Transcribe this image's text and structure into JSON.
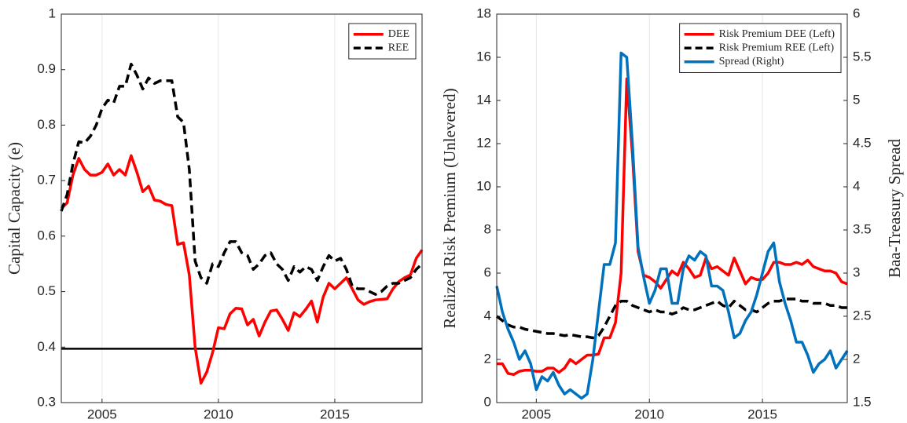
{
  "chart_data": [
    {
      "type": "line",
      "ylabel": "Capital Capacity (e)",
      "xlim": [
        2003.25,
        2018.75
      ],
      "xticks": [
        2005,
        2010,
        2015
      ],
      "ylim": [
        0.3,
        1
      ],
      "yticks": [
        0.3,
        0.4,
        0.5,
        0.6,
        0.7,
        0.8,
        0.9,
        1
      ],
      "grid": "x",
      "legend": "upper right",
      "reference_line": 0.397,
      "x": [
        2003.25,
        2003.5,
        2003.75,
        2004,
        2004.25,
        2004.5,
        2004.75,
        2005,
        2005.25,
        2005.5,
        2005.75,
        2006,
        2006.25,
        2006.5,
        2006.75,
        2007,
        2007.25,
        2007.5,
        2007.75,
        2008,
        2008.25,
        2008.5,
        2008.75,
        2009,
        2009.25,
        2009.5,
        2009.75,
        2010,
        2010.25,
        2010.5,
        2010.75,
        2011,
        2011.25,
        2011.5,
        2011.75,
        2012,
        2012.25,
        2012.5,
        2012.75,
        2013,
        2013.25,
        2013.5,
        2013.75,
        2014,
        2014.25,
        2014.5,
        2014.75,
        2015,
        2015.25,
        2015.5,
        2015.75,
        2016,
        2016.25,
        2016.5,
        2016.75,
        2017,
        2017.25,
        2017.5,
        2017.75,
        2018,
        2018.25,
        2018.5,
        2018.75
      ],
      "series": [
        {
          "name": "DEE",
          "color": "#ff0000",
          "linestyle": "solid",
          "values": [
            0.65,
            0.66,
            0.71,
            0.74,
            0.72,
            0.71,
            0.71,
            0.715,
            0.73,
            0.71,
            0.72,
            0.71,
            0.745,
            0.715,
            0.68,
            0.69,
            0.665,
            0.663,
            0.657,
            0.655,
            0.585,
            0.588,
            0.53,
            0.4,
            0.335,
            0.355,
            0.39,
            0.435,
            0.433,
            0.46,
            0.47,
            0.469,
            0.44,
            0.45,
            0.42,
            0.445,
            0.465,
            0.467,
            0.45,
            0.43,
            0.462,
            0.455,
            0.468,
            0.483,
            0.445,
            0.49,
            0.515,
            0.505,
            0.515,
            0.525,
            0.505,
            0.485,
            0.477,
            0.482,
            0.485,
            0.486,
            0.487,
            0.505,
            0.518,
            0.525,
            0.53,
            0.56,
            0.575
          ]
        },
        {
          "name": "REE",
          "color": "#000000",
          "linestyle": "dashed",
          "values": [
            0.645,
            0.675,
            0.73,
            0.77,
            0.768,
            0.78,
            0.8,
            0.83,
            0.845,
            0.84,
            0.87,
            0.87,
            0.91,
            0.89,
            0.865,
            0.885,
            0.875,
            0.88,
            0.88,
            0.88,
            0.815,
            0.805,
            0.72,
            0.555,
            0.525,
            0.515,
            0.55,
            0.545,
            0.57,
            0.59,
            0.59,
            0.57,
            0.565,
            0.54,
            0.55,
            0.565,
            0.57,
            0.55,
            0.54,
            0.52,
            0.545,
            0.535,
            0.545,
            0.54,
            0.52,
            0.545,
            0.565,
            0.555,
            0.56,
            0.54,
            0.51,
            0.505,
            0.505,
            0.5,
            0.495,
            0.5,
            0.51,
            0.515,
            0.515,
            0.52,
            0.525,
            0.54,
            0.55
          ]
        }
      ]
    },
    {
      "type": "line",
      "ylabel": "Realized Risk Premium (Unlevered)",
      "y2label": "Baa-Treasury Spread",
      "xlim": [
        2003.25,
        2018.75
      ],
      "xticks": [
        2005,
        2010,
        2015
      ],
      "ylim": [
        0,
        18
      ],
      "yticks": [
        0,
        2,
        4,
        6,
        8,
        10,
        12,
        14,
        16,
        18
      ],
      "y2lim": [
        1.5,
        6
      ],
      "y2ticks": [
        1.5,
        2,
        2.5,
        3,
        3.5,
        4,
        4.5,
        5,
        5.5,
        6
      ],
      "grid": "x",
      "legend": "upper right",
      "x": [
        2003.25,
        2003.5,
        2003.75,
        2004,
        2004.25,
        2004.5,
        2004.75,
        2005,
        2005.25,
        2005.5,
        2005.75,
        2006,
        2006.25,
        2006.5,
        2006.75,
        2007,
        2007.25,
        2007.5,
        2007.75,
        2008,
        2008.25,
        2008.5,
        2008.75,
        2009,
        2009.25,
        2009.5,
        2009.75,
        2010,
        2010.25,
        2010.5,
        2010.75,
        2011,
        2011.25,
        2011.5,
        2011.75,
        2012,
        2012.25,
        2012.5,
        2012.75,
        2013,
        2013.25,
        2013.5,
        2013.75,
        2014,
        2014.25,
        2014.5,
        2014.75,
        2015,
        2015.25,
        2015.5,
        2015.75,
        2016,
        2016.25,
        2016.5,
        2016.75,
        2017,
        2017.25,
        2017.5,
        2017.75,
        2018,
        2018.25,
        2018.5,
        2018.75
      ],
      "series": [
        {
          "name": "Risk Premium DEE (Left)",
          "color": "#ff0000",
          "linestyle": "solid",
          "values": [
            1.8,
            1.8,
            1.35,
            1.3,
            1.45,
            1.5,
            1.5,
            1.45,
            1.45,
            1.6,
            1.6,
            1.4,
            1.6,
            2.0,
            1.8,
            2.0,
            2.2,
            2.2,
            2.25,
            3.0,
            3.0,
            3.7,
            6.0,
            15.0,
            11.5,
            7.0,
            5.9,
            5.8,
            5.6,
            5.3,
            5.7,
            6.1,
            5.9,
            6.5,
            6.2,
            5.8,
            5.9,
            6.7,
            6.2,
            6.3,
            6.1,
            5.9,
            6.7,
            6.1,
            5.5,
            5.8,
            5.7,
            5.7,
            6.0,
            6.5,
            6.5,
            6.4,
            6.4,
            6.5,
            6.4,
            6.6,
            6.3,
            6.2,
            6.1,
            6.1,
            6.0,
            5.6,
            5.5
          ]
        },
        {
          "name": "Risk Premium REE (Left)",
          "color": "#000000",
          "linestyle": "dashed",
          "values": [
            4.0,
            3.8,
            3.6,
            3.5,
            3.5,
            3.4,
            3.35,
            3.3,
            3.25,
            3.2,
            3.2,
            3.15,
            3.1,
            3.15,
            3.1,
            3.05,
            3.05,
            3.0,
            3.1,
            3.5,
            4.0,
            4.5,
            4.7,
            4.7,
            4.5,
            4.4,
            4.3,
            4.2,
            4.3,
            4.2,
            4.2,
            4.1,
            4.2,
            4.4,
            4.3,
            4.3,
            4.4,
            4.5,
            4.6,
            4.7,
            4.5,
            4.4,
            4.7,
            4.5,
            4.3,
            4.3,
            4.2,
            4.4,
            4.6,
            4.7,
            4.7,
            4.8,
            4.8,
            4.8,
            4.7,
            4.7,
            4.6,
            4.6,
            4.6,
            4.5,
            4.5,
            4.4,
            4.4
          ]
        },
        {
          "name": "Spread (Right)",
          "color": "#0072bd",
          "linestyle": "solid",
          "axis": "y2",
          "values": [
            2.85,
            2.55,
            2.35,
            2.2,
            2.0,
            2.1,
            1.95,
            1.65,
            1.8,
            1.75,
            1.85,
            1.7,
            1.6,
            1.65,
            1.6,
            1.55,
            1.6,
            2.0,
            2.55,
            3.1,
            3.1,
            3.35,
            5.55,
            5.5,
            4.5,
            3.3,
            2.95,
            2.65,
            2.8,
            3.05,
            3.05,
            2.65,
            2.65,
            3.05,
            3.2,
            3.15,
            3.25,
            3.2,
            2.85,
            2.85,
            2.8,
            2.55,
            2.25,
            2.3,
            2.45,
            2.55,
            2.75,
            3.0,
            3.25,
            3.35,
            2.9,
            2.65,
            2.45,
            2.2,
            2.2,
            2.05,
            1.85,
            1.95,
            2.0,
            2.1,
            1.9,
            2.0,
            2.1
          ]
        }
      ]
    }
  ]
}
